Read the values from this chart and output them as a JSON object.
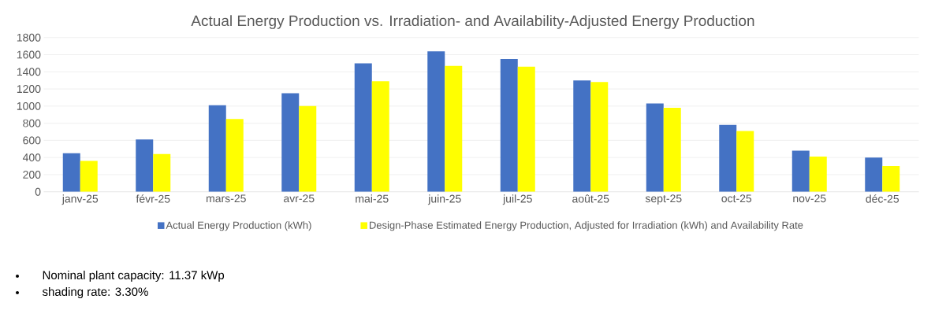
{
  "chart_data": {
    "type": "bar",
    "title": "Actual Energy Production vs. Irradiation- and Availability-Adjusted Energy Production",
    "categories": [
      "janv-25",
      "févr-25",
      "mars-25",
      "avr-25",
      "mai-25",
      "juin-25",
      "juil-25",
      "août-25",
      "sept-25",
      "oct-25",
      "nov-25",
      "déc-25"
    ],
    "series": [
      {
        "name": "Actual Energy Production (kWh)",
        "color": "#4472c4",
        "values": [
          450,
          610,
          1010,
          1150,
          1500,
          1640,
          1550,
          1300,
          1030,
          780,
          480,
          400
        ]
      },
      {
        "name": "Design-Phase Estimated Energy Production, Adjusted for Irradiation (kWh) and Availability Rate",
        "color": "#ffff00",
        "values": [
          360,
          440,
          850,
          1000,
          1290,
          1470,
          1460,
          1280,
          980,
          710,
          410,
          300
        ]
      }
    ],
    "ylim": [
      0,
      1800
    ],
    "yticks": [
      0,
      200,
      400,
      600,
      800,
      1000,
      1200,
      1400,
      1600,
      1800
    ],
    "grid": "y",
    "legend": "bottom",
    "annotations": [
      "Nominal plant capacity: 11.37 kWp",
      "shading rate: 3.30%"
    ]
  }
}
